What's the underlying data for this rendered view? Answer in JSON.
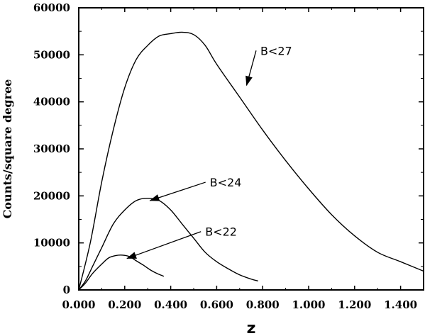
{
  "chart_data": {
    "type": "line",
    "title": "",
    "xlabel": "z",
    "ylabel": "Counts/square degree",
    "xlim": [
      0,
      1.5
    ],
    "ylim": [
      0,
      60000
    ],
    "xticks": [
      0,
      0.2,
      0.4,
      0.6,
      0.8,
      1.0,
      1.2,
      1.4
    ],
    "xtick_labels": [
      "0.000",
      "0.200",
      "0.400",
      "0.600",
      "0.800",
      "1.000",
      "1.200",
      "1.400"
    ],
    "yticks": [
      0,
      10000,
      20000,
      30000,
      40000,
      50000,
      60000
    ],
    "ytick_labels": [
      "0",
      "10000",
      "20000",
      "30000",
      "40000",
      "50000",
      "60000"
    ],
    "grid": false,
    "legend": "none",
    "series": [
      {
        "name": "B<27",
        "x": [
          0,
          0.05,
          0.1,
          0.15,
          0.2,
          0.25,
          0.3,
          0.35,
          0.4,
          0.45,
          0.5,
          0.55,
          0.6,
          0.7,
          0.8,
          0.9,
          1.0,
          1.1,
          1.2,
          1.3,
          1.4,
          1.5
        ],
        "y": [
          0,
          10000,
          23000,
          34000,
          43000,
          49000,
          52000,
          54000,
          54500,
          54800,
          54300,
          52000,
          48000,
          41000,
          34000,
          27500,
          21500,
          16000,
          11500,
          8000,
          6000,
          4000
        ]
      },
      {
        "name": "B<24",
        "x": [
          0,
          0.03,
          0.06,
          0.1,
          0.15,
          0.2,
          0.25,
          0.3,
          0.35,
          0.4,
          0.45,
          0.5,
          0.55,
          0.6,
          0.65,
          0.7,
          0.75,
          0.78
        ],
        "y": [
          0,
          2000,
          5000,
          9000,
          14000,
          17000,
          19000,
          19500,
          19000,
          17000,
          14000,
          11000,
          8000,
          6000,
          4500,
          3200,
          2300,
          1900
        ]
      },
      {
        "name": "B<22",
        "x": [
          0,
          0.03,
          0.06,
          0.1,
          0.13,
          0.16,
          0.19,
          0.22,
          0.25,
          0.28,
          0.31,
          0.34,
          0.37
        ],
        "y": [
          0,
          1500,
          3500,
          5500,
          6800,
          7300,
          7400,
          7100,
          6200,
          5300,
          4300,
          3500,
          2900
        ]
      }
    ],
    "annotations": [
      {
        "text": "B<27",
        "text_x": 0.79,
        "text_y": 50000,
        "arrow_to_x": 0.73,
        "arrow_to_y": 43500
      },
      {
        "text": "B<24",
        "text_x": 0.57,
        "text_y": 22000,
        "arrow_to_x": 0.31,
        "arrow_to_y": 19000
      },
      {
        "text": "B<22",
        "text_x": 0.55,
        "text_y": 11500,
        "arrow_to_x": 0.21,
        "arrow_to_y": 6700
      }
    ]
  }
}
